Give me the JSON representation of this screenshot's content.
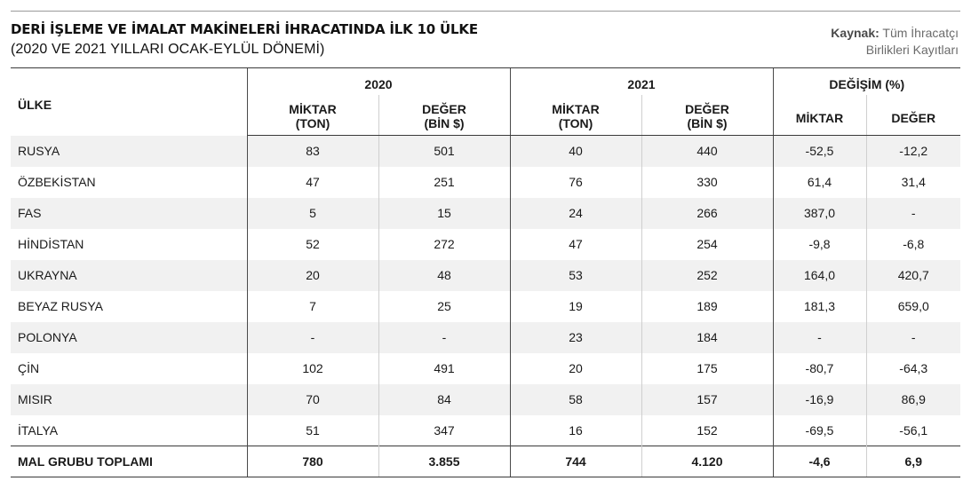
{
  "header": {
    "title": "DERİ İŞLEME VE İMALAT MAKİNELERİ İHRACATINDA İLK 10 ÜLKE",
    "subtitle": "(2020 VE 2021 YILLARI OCAK-EYLÜL DÖNEMİ)",
    "source_label": "Kaynak:",
    "source_text_1": "Tüm İhracatçı",
    "source_text_2": "Birlikleri Kayıtları"
  },
  "table": {
    "country_header": "ÜLKE",
    "group_2020": "2020",
    "group_2021": "2021",
    "group_change": "DEĞİŞİM (%)",
    "sub_qty_1": "MİKTAR",
    "sub_qty_2": "(TON)",
    "sub_val_1": "DEĞER",
    "sub_val_2": "(BİN $)",
    "sub_change_qty": "MİKTAR",
    "sub_change_val": "DEĞER",
    "rows": [
      {
        "country": "RUSYA",
        "q2020": "83",
        "v2020": "501",
        "q2021": "40",
        "v2021": "440",
        "cq": "-52,5",
        "cv": "-12,2"
      },
      {
        "country": "ÖZBEKİSTAN",
        "q2020": "47",
        "v2020": "251",
        "q2021": "76",
        "v2021": "330",
        "cq": "61,4",
        "cv": "31,4"
      },
      {
        "country": "FAS",
        "q2020": "5",
        "v2020": "15",
        "q2021": "24",
        "v2021": "266",
        "cq": "387,0",
        "cv": "-"
      },
      {
        "country": "HİNDİSTAN",
        "q2020": "52",
        "v2020": "272",
        "q2021": "47",
        "v2021": "254",
        "cq": "-9,8",
        "cv": "-6,8"
      },
      {
        "country": "UKRAYNA",
        "q2020": "20",
        "v2020": "48",
        "q2021": "53",
        "v2021": "252",
        "cq": "164,0",
        "cv": "420,7"
      },
      {
        "country": "BEYAZ RUSYA",
        "q2020": "7",
        "v2020": "25",
        "q2021": "19",
        "v2021": "189",
        "cq": "181,3",
        "cv": "659,0"
      },
      {
        "country": "POLONYA",
        "q2020": "-",
        "v2020": "-",
        "q2021": "23",
        "v2021": "184",
        "cq": "-",
        "cv": "-"
      },
      {
        "country": "ÇİN",
        "q2020": "102",
        "v2020": "491",
        "q2021": "20",
        "v2021": "175",
        "cq": "-80,7",
        "cv": "-64,3"
      },
      {
        "country": "MISIR",
        "q2020": "70",
        "v2020": "84",
        "q2021": "58",
        "v2021": "157",
        "cq": "-16,9",
        "cv": "86,9"
      },
      {
        "country": "İTALYA",
        "q2020": "51",
        "v2020": "347",
        "q2021": "16",
        "v2021": "152",
        "cq": "-69,5",
        "cv": "-56,1"
      }
    ],
    "total": {
      "country": "MAL GRUBU TOPLAMI",
      "q2020": "780",
      "v2020": "3.855",
      "q2021": "744",
      "v2021": "4.120",
      "cq": "-4,6",
      "cv": "6,9"
    }
  }
}
